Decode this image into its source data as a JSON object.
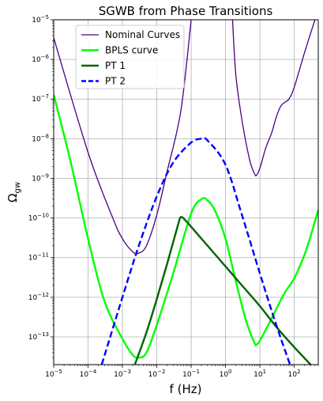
{
  "chart_data": {
    "type": "line",
    "title": "SGWB from Phase Transitions",
    "xlabel": "f (Hz)",
    "ylabel": "Ω",
    "ylabel_sub": "gw",
    "xscale": "log",
    "yscale": "log",
    "xlim": [
      1e-05,
      500
    ],
    "ylim": [
      2e-14,
      1e-05
    ],
    "grid": true,
    "legend_position": "upper-left",
    "x_ticks": [
      {
        "base": "10",
        "exp": "−5"
      },
      {
        "base": "10",
        "exp": "−4"
      },
      {
        "base": "10",
        "exp": "−3"
      },
      {
        "base": "10",
        "exp": "−2"
      },
      {
        "base": "10",
        "exp": "−1"
      },
      {
        "base": "10",
        "exp": "0"
      },
      {
        "base": "10",
        "exp": "1"
      },
      {
        "base": "10",
        "exp": "2"
      }
    ],
    "y_ticks": [
      {
        "base": "10",
        "exp": "−13"
      },
      {
        "base": "10",
        "exp": "−12"
      },
      {
        "base": "10",
        "exp": "−11"
      },
      {
        "base": "10",
        "exp": "−10"
      },
      {
        "base": "10",
        "exp": "−9"
      },
      {
        "base": "10",
        "exp": "−8"
      },
      {
        "base": "10",
        "exp": "−7"
      },
      {
        "base": "10",
        "exp": "−6"
      },
      {
        "base": "10",
        "exp": "−5"
      }
    ],
    "series": [
      {
        "name": "Nominal Curves",
        "color": "#4b0082",
        "style": "solid",
        "width": 1.3,
        "segments": [
          [
            [
              1e-05,
              3.5e-06
            ],
            [
              0.0001,
              4.5e-09
            ],
            [
              0.0005,
              1.1e-10
            ],
            [
              0.001,
              3e-11
            ],
            [
              0.002,
              1.4e-11
            ],
            [
              0.003,
              1.3e-11
            ],
            [
              0.005,
              2e-11
            ],
            [
              0.01,
              1.2e-10
            ],
            [
              0.02,
              1.5e-09
            ],
            [
              0.05,
              5e-08
            ],
            [
              0.1,
              1e-05
            ]
          ],
          [
            [
              1.6,
              1e-05
            ],
            [
              2,
              4e-07
            ],
            [
              3,
              3e-08
            ],
            [
              5,
              3e-09
            ],
            [
              7,
              1.3e-09
            ],
            [
              8,
              1.2e-09
            ],
            [
              10,
              1.8e-09
            ],
            [
              15,
              6e-09
            ],
            [
              22,
              1.4e-08
            ],
            [
              30,
              3.5e-08
            ],
            [
              40,
              6.5e-08
            ],
            [
              50,
              8e-08
            ],
            [
              70,
              1e-07
            ],
            [
              100,
              2e-07
            ],
            [
              200,
              1.5e-06
            ],
            [
              400,
              1e-05
            ]
          ]
        ]
      },
      {
        "name": "BPLS curve",
        "color": "#00ff00",
        "style": "solid",
        "width": 2.4,
        "segments": [
          [
            [
              1e-05,
              1.3e-07
            ],
            [
              3e-05,
              3e-09
            ],
            [
              0.0001,
              3e-11
            ],
            [
              0.0003,
              8e-13
            ],
            [
              0.001,
              9e-14
            ],
            [
              0.002,
              3.5e-14
            ],
            [
              0.003,
              3e-14
            ],
            [
              0.005,
              4e-14
            ],
            [
              0.01,
              2e-13
            ],
            [
              0.03,
              4e-12
            ],
            [
              0.1,
              1.3e-10
            ],
            [
              0.2,
              3e-10
            ],
            [
              0.3,
              2.8e-10
            ],
            [
              0.5,
              1.5e-10
            ],
            [
              1,
              3e-11
            ],
            [
              2,
              2.5e-12
            ],
            [
              4,
              2.5e-13
            ],
            [
              7,
              7e-14
            ],
            [
              8,
              6.5e-14
            ],
            [
              10,
              8e-14
            ],
            [
              20,
              2.5e-13
            ],
            [
              50,
              1.2e-12
            ],
            [
              100,
              3e-12
            ],
            [
              200,
              1.2e-11
            ],
            [
              300,
              3.5e-11
            ],
            [
              500,
              1.6e-10
            ]
          ]
        ]
      },
      {
        "name": "PT 1",
        "color": "#006400",
        "style": "solid",
        "width": 2.4,
        "segments": [
          [
            [
              0.0023,
              2e-14
            ],
            [
              0.005,
              1.3e-13
            ],
            [
              0.01,
              9e-13
            ],
            [
              0.02,
              7e-12
            ],
            [
              0.04,
              6e-11
            ],
            [
              0.05,
              1.05e-10
            ],
            [
              0.07,
              8.5e-11
            ],
            [
              0.1,
              6e-11
            ],
            [
              0.3,
              2e-11
            ],
            [
              1,
              6e-12
            ],
            [
              3,
              2e-12
            ],
            [
              10,
              6e-13
            ],
            [
              30,
              1.8e-13
            ],
            [
              100,
              5.5e-14
            ],
            [
              300,
              2e-14
            ]
          ]
        ]
      },
      {
        "name": "PT 2",
        "color": "#0000ff",
        "style": "dashed",
        "width": 2.4,
        "segments": [
          [
            [
              0.00025,
              2e-14
            ],
            [
              0.001,
              1e-12
            ],
            [
              0.003,
              2e-11
            ],
            [
              0.01,
              3.5e-10
            ],
            [
              0.03,
              2.5e-09
            ],
            [
              0.1,
              8e-09
            ],
            [
              0.2,
              1e-08
            ],
            [
              0.3,
              9e-09
            ],
            [
              1,
              2.2e-09
            ],
            [
              3,
              1.2e-10
            ],
            [
              10,
              4e-12
            ],
            [
              30,
              2e-13
            ],
            [
              100,
              1e-14
            ]
          ]
        ]
      }
    ]
  }
}
